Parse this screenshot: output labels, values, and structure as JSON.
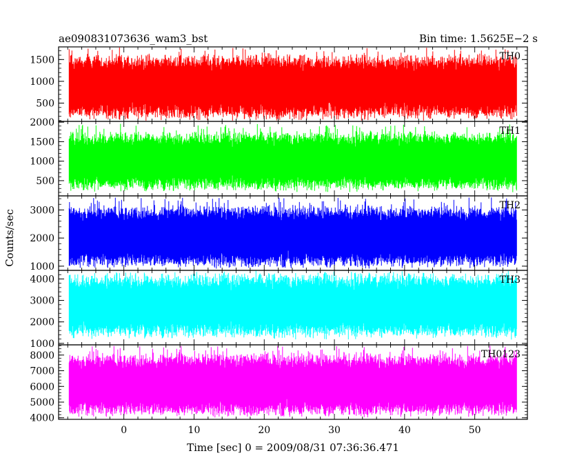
{
  "header": {
    "title": "ae090831073636_wam3_bst",
    "bin_time": "Bin time: 1.5625E−2 s"
  },
  "chart_data": {
    "type": "line",
    "title": "ae090831073636_wam3_bst",
    "subtitle": "Bin time: 1.5625E−2 s",
    "xlabel": "Time [sec] 0 = 2009/08/31 07:36:36.471",
    "ylabel": "Counts/sec",
    "xlim": [
      -9.3,
      57.5
    ],
    "x_range_data": [
      -7.8,
      56.0
    ],
    "xticks": [
      0,
      10,
      20,
      30,
      40,
      50
    ],
    "panels": [
      {
        "name": "TH0",
        "color": "#ff0000",
        "ylim": [
          80,
          1790
        ],
        "yticks": [
          500,
          1000,
          1500
        ],
        "mean": 870,
        "low": 140,
        "high": 1700,
        "max_seen": 1780
      },
      {
        "name": "TH1",
        "color": "#00ff00",
        "ylim": [
          110,
          2020
        ],
        "yticks": [
          500,
          1000,
          1500,
          2000
        ],
        "mean": 1000,
        "low": 230,
        "high": 1820,
        "max_seen": 1960
      },
      {
        "name": "TH2",
        "color": "#0000ff",
        "ylim": [
          850,
          3500
        ],
        "yticks": [
          1000,
          2000,
          3000
        ],
        "mean": 2050,
        "low": 920,
        "high": 3250,
        "max_seen": 3450
      },
      {
        "name": "TH3",
        "color": "#00ffff",
        "ylim": [
          930,
          4400
        ],
        "yticks": [
          1000,
          2000,
          3000,
          4000
        ],
        "mean": 2750,
        "low": 1050,
        "high": 4200,
        "max_seen": 4400
      },
      {
        "name": "TH0123",
        "color": "#ff00ff",
        "ylim": [
          3900,
          8650
        ],
        "yticks": [
          4000,
          5000,
          6000,
          7000,
          8000
        ],
        "mean": 6100,
        "low": 4050,
        "high": 8300,
        "max_seen": 8600
      }
    ]
  }
}
